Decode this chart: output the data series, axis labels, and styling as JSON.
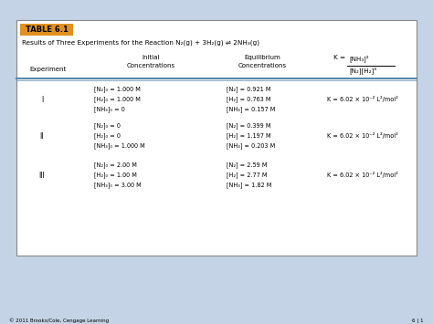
{
  "bg_color": "#c4d4e6",
  "table_bg": "#ffffff",
  "title_label": "TABLE 6.1",
  "title_label_bg": "#e09020",
  "subtitle": "Results of Three Experiments for the Reaction N₂(g) + 3H₂(g) ⇌ 2NH₃(g)",
  "footer_left": "© 2011 Brooks/Cole, Cengage Learning",
  "footer_right": "6 | 1",
  "experiments": [
    "I",
    "II",
    "III"
  ],
  "initial_conc": [
    [
      "[N₂]₀ = 1.000 M",
      "[H₂]₀ = 1.000 M",
      "[NH₃]₀ = 0"
    ],
    [
      "[N₂]₀ = 0",
      "[H₂]₀ = 0",
      "[NH₃]₀ = 1.000 M"
    ],
    [
      "[N₂]₀ = 2.00 M",
      "[H₂]₀ = 1.00 M",
      "[NH₃]₀ = 3.00 M"
    ]
  ],
  "equil_conc": [
    [
      "[N₂] = 0.921 M",
      "[H₂] = 0.763 M",
      "[NH₃] = 0.157 M"
    ],
    [
      "[N₂] = 0.399 M",
      "[H₂] = 1.197 M",
      "[NH₃] = 0.203 M"
    ],
    [
      "[N₂] = 2.59 M",
      "[H₂] = 2.77 M",
      "[NH₃] = 1.82 M"
    ]
  ],
  "k_value": "K = 6.02 × 10⁻² L²/mol²"
}
